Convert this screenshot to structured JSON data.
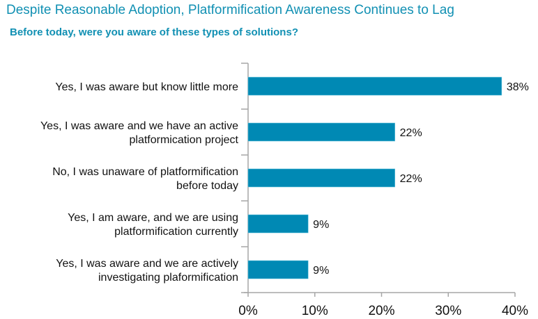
{
  "header": {
    "title": "Despite Reasonable Adoption, Platformification Awareness Continues to Lag",
    "subtitle": "Before today, were you aware of these types of solutions?"
  },
  "colors": {
    "bar": "#0089b4",
    "title": "#1190b3",
    "axis": "#a6a6a6"
  },
  "chart_data": {
    "type": "bar",
    "orientation": "horizontal",
    "title": "Despite Reasonable Adoption, Platformification Awareness Continues to Lag",
    "subtitle": "Before today, were you aware of these types of solutions?",
    "categories": [
      [
        "Yes, I was aware but know little more"
      ],
      [
        "Yes, I was aware and we have an active",
        "platformication project"
      ],
      [
        "No, I was unaware of platformification",
        "before today"
      ],
      [
        "Yes, I am aware, and we are using",
        "platformification currently"
      ],
      [
        "Yes, I was aware and we are actively",
        "investigating plaformification"
      ]
    ],
    "values": [
      38,
      22,
      22,
      9,
      9
    ],
    "data_labels": [
      "38%",
      "22%",
      "22%",
      "9%",
      "9%"
    ],
    "xlabel": "",
    "ylabel": "",
    "xlim": [
      0,
      40
    ],
    "x_ticks": [
      0,
      10,
      20,
      30,
      40
    ],
    "x_tick_labels": [
      "0%",
      "10%",
      "20%",
      "30%",
      "40%"
    ],
    "grid": false,
    "legend": "none"
  }
}
